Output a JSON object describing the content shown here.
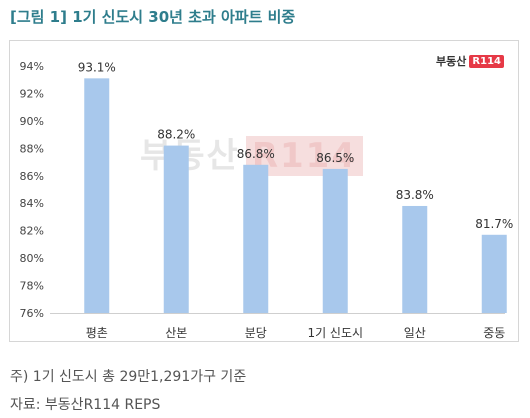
{
  "title": "[그림 1] 1기 신도시 30년 초과 아파트 비중",
  "logo": {
    "brand": "부동산",
    "mark": "R114"
  },
  "watermark": {
    "brand": "부동산",
    "mark": "R114"
  },
  "footnote": "주) 1기 신도시 총 29만1,291가구 기준",
  "source": "자료: 부동산R114 REPS",
  "chart_data": {
    "type": "bar",
    "title": "",
    "xlabel": "",
    "ylabel": "",
    "categories": [
      "평촌",
      "산본",
      "분당",
      "1기 신도시",
      "일산",
      "중동"
    ],
    "values": [
      93.1,
      88.2,
      86.8,
      86.5,
      83.8,
      81.7
    ],
    "value_labels": [
      "93.1%",
      "88.2%",
      "86.8%",
      "86.5%",
      "83.8%",
      "81.7%"
    ],
    "ylim": [
      76,
      94
    ],
    "yticks": [
      76,
      78,
      80,
      82,
      84,
      86,
      88,
      90,
      92,
      94
    ],
    "ytick_labels": [
      "76%",
      "78%",
      "80%",
      "82%",
      "84%",
      "86%",
      "88%",
      "90%",
      "92%",
      "94%"
    ],
    "grid": false,
    "legend": "none",
    "bar_color": "#a8c8ec",
    "highlight_index": 3,
    "highlight_color": "#f2c0c0"
  }
}
